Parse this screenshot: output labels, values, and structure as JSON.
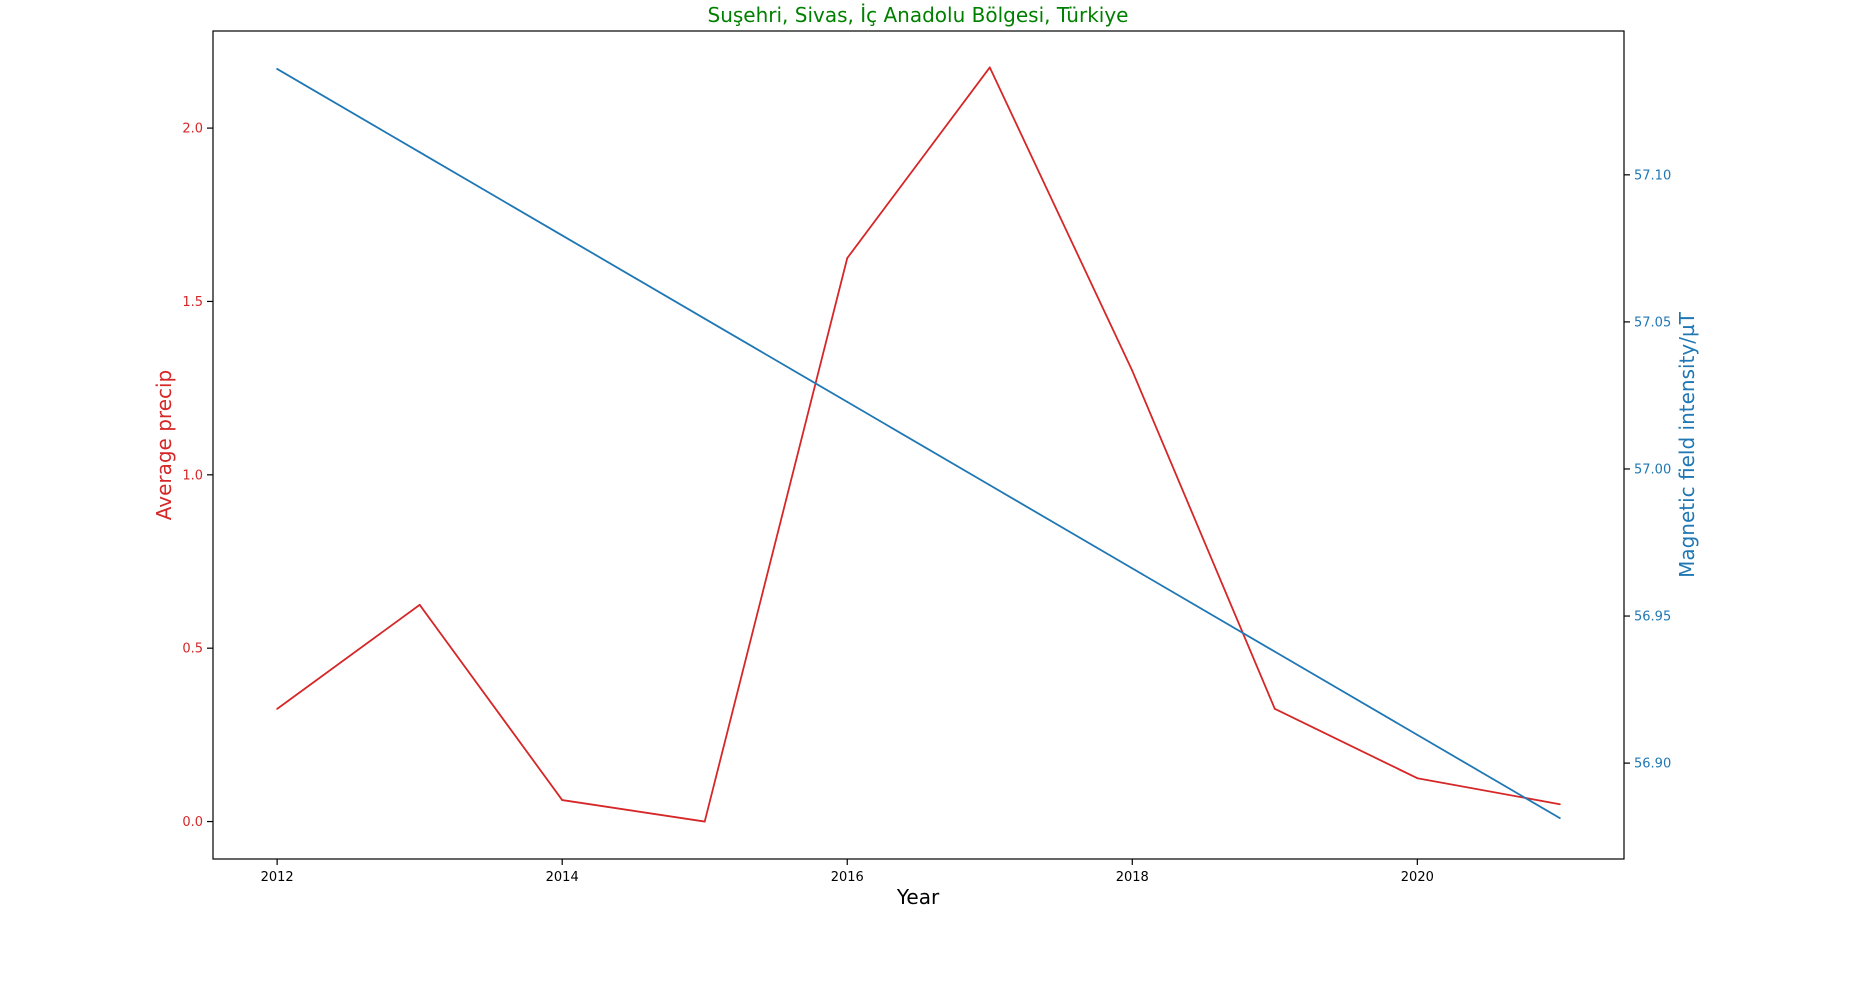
{
  "chart_data": {
    "type": "line",
    "title": "Suşehri, Sivas, İç Anadolu Bölgesi, Türkiye",
    "title_color": "#008000",
    "xlabel": "Year",
    "ylabel_left": "Average precip",
    "ylabel_right": "Magnetic field intensity/µT",
    "x": [
      2012,
      2013,
      2014,
      2015,
      2016,
      2017,
      2018,
      2019,
      2020,
      2021
    ],
    "xlim": [
      2011.55,
      2021.45
    ],
    "x_ticks": [
      2012,
      2014,
      2016,
      2018,
      2020
    ],
    "x_tick_labels": [
      "2012",
      "2014",
      "2016",
      "2018",
      "2020"
    ],
    "ylim_left": [
      -0.108,
      2.28
    ],
    "y_ticks_left": [
      0.0,
      0.5,
      1.0,
      1.5,
      2.0
    ],
    "y_tick_labels_left": [
      "0.0",
      "0.5",
      "1.0",
      "1.5",
      "2.0"
    ],
    "ylim_right": [
      56.8674,
      57.1489
    ],
    "y_ticks_right": [
      56.9,
      56.95,
      57.0,
      57.05,
      57.1
    ],
    "y_tick_labels_right": [
      "56.90",
      "56.95",
      "57.00",
      "57.05",
      "57.10"
    ],
    "series": [
      {
        "axis": "left",
        "color": "#d62728",
        "values": [
          0.325,
          0.625,
          0.062,
          0.0,
          1.625,
          2.175,
          1.3,
          0.325,
          0.125,
          0.05
        ]
      },
      {
        "axis": "right",
        "color": "#1f77b4",
        "values": [
          57.136,
          57.1077,
          57.0794,
          57.0511,
          57.0228,
          56.9945,
          56.9662,
          56.9379,
          56.9096,
          56.8813
        ]
      }
    ],
    "grid": false
  }
}
